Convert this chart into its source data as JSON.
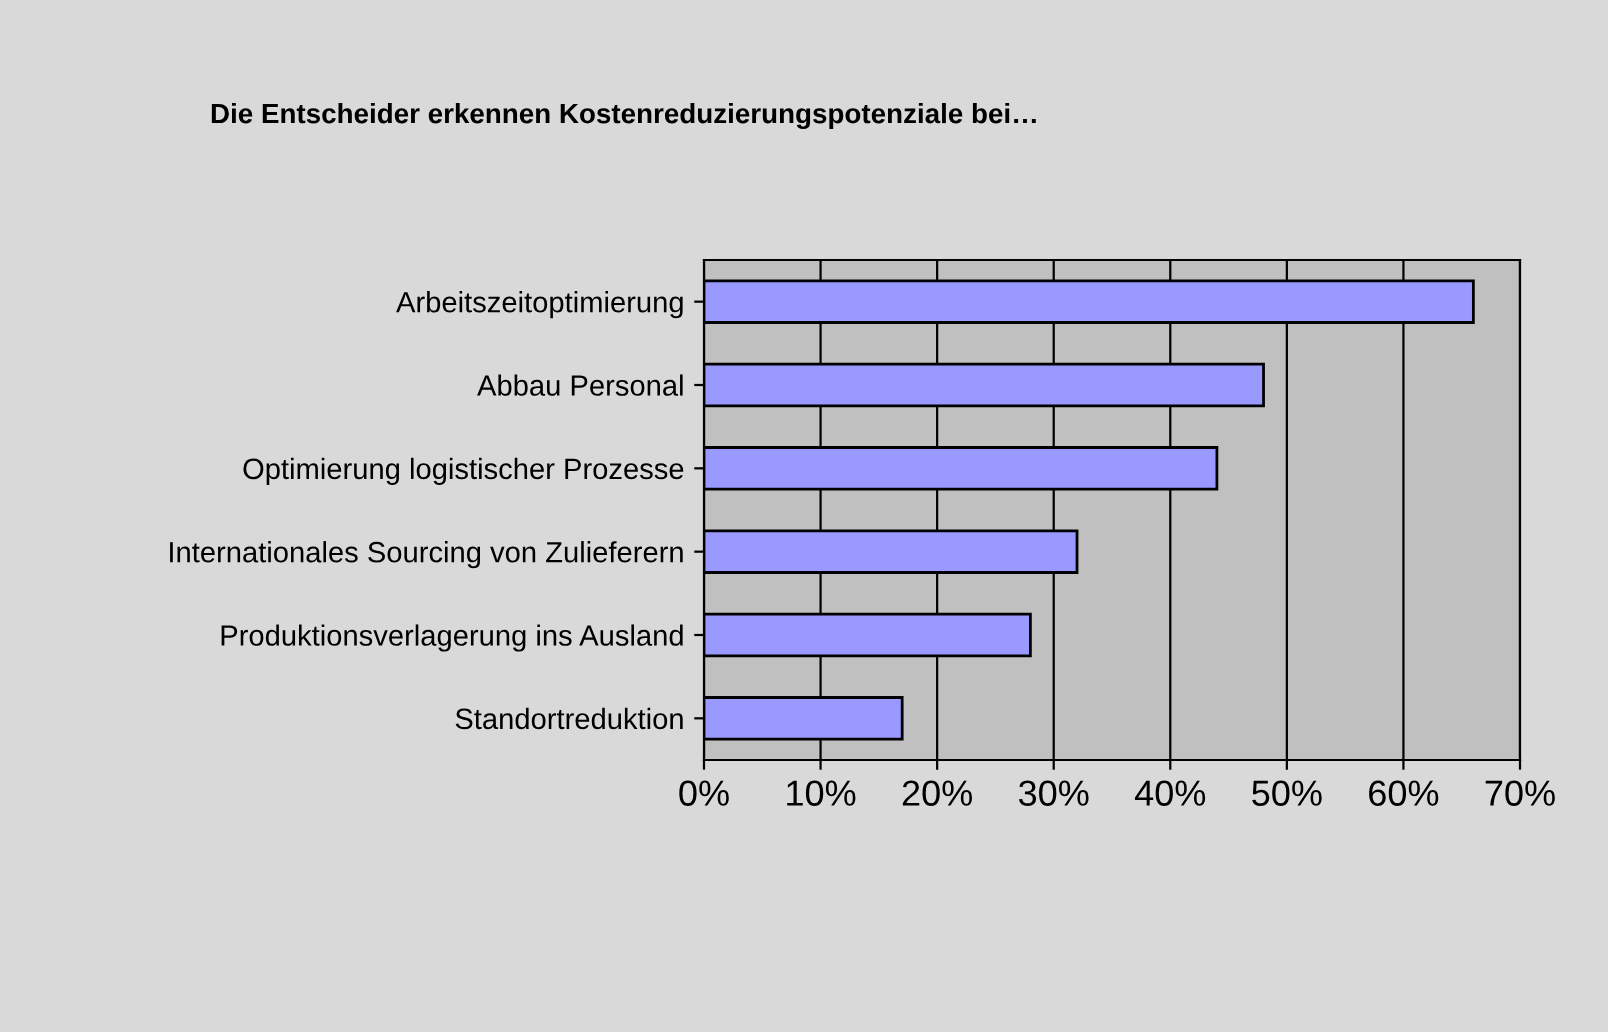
{
  "chart_data": {
    "type": "bar",
    "orientation": "horizontal",
    "title": "Die Entscheider erkennen Kostenreduzierungspotenziale bei…",
    "categories": [
      "Arbeitszeitoptimierung",
      "Abbau Personal",
      "Optimierung logistischer Prozesse",
      "Internationales Sourcing von Zulieferern",
      "Produktionsverlagerung ins Ausland",
      "Standortreduktion"
    ],
    "values": [
      66,
      48,
      44,
      32,
      28,
      17
    ],
    "color": "#9999ff",
    "xlim": [
      0,
      70
    ],
    "xticks": [
      {
        "value": 0,
        "label": "0%"
      },
      {
        "value": 10,
        "label": "10%"
      },
      {
        "value": 20,
        "label": "20%"
      },
      {
        "value": 30,
        "label": "30%"
      },
      {
        "value": 40,
        "label": "40%"
      },
      {
        "value": 50,
        "label": "50%"
      },
      {
        "value": 60,
        "label": "60%"
      },
      {
        "value": 70,
        "label": "70%"
      }
    ],
    "grid": "x",
    "legend": false
  }
}
